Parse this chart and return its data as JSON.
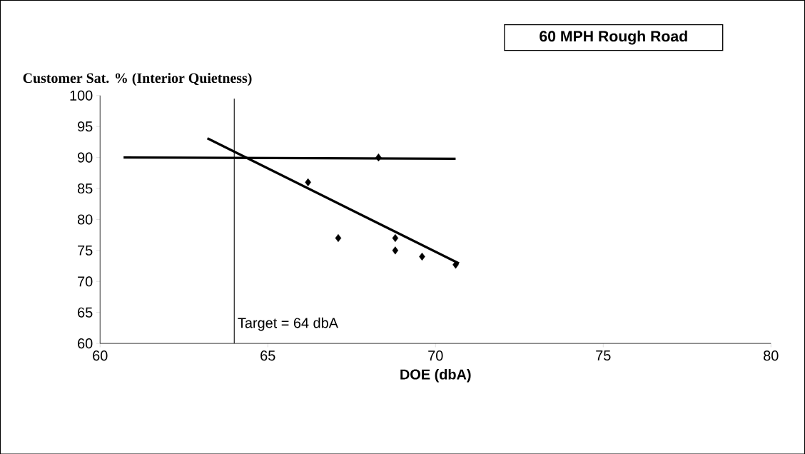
{
  "chart_data": {
    "type": "scatter",
    "title": "60 MPH Rough Road",
    "ylabel": "Customer Sat. % (Interior Quietness)",
    "xlabel": "DOE (dbA)",
    "xlim": [
      60,
      80
    ],
    "ylim": [
      60,
      100
    ],
    "xticks": [
      60,
      65,
      70,
      75,
      80
    ],
    "yticks": [
      60,
      65,
      70,
      75,
      80,
      85,
      90,
      95,
      100
    ],
    "grid": false,
    "series": [
      {
        "marker": "diamond",
        "color": "#000000",
        "x": [
          66.2,
          67.1,
          68.3,
          68.8,
          68.8,
          69.6,
          70.6
        ],
        "values": [
          86,
          77,
          90,
          77,
          75,
          74,
          72.7
        ]
      },
      {
        "type": "line",
        "marker": "none",
        "color": "#000000",
        "x": [
          60.7,
          70.6
        ],
        "values": [
          90,
          89.8
        ]
      },
      {
        "type": "line",
        "marker": "none",
        "color": "#000000",
        "x": [
          63.2,
          70.7
        ],
        "values": [
          93.1,
          72.9
        ]
      }
    ],
    "ref_lines": [
      {
        "axis": "x",
        "value": 64,
        "label": "Target = 64 dbA",
        "color": "#000000"
      }
    ]
  }
}
